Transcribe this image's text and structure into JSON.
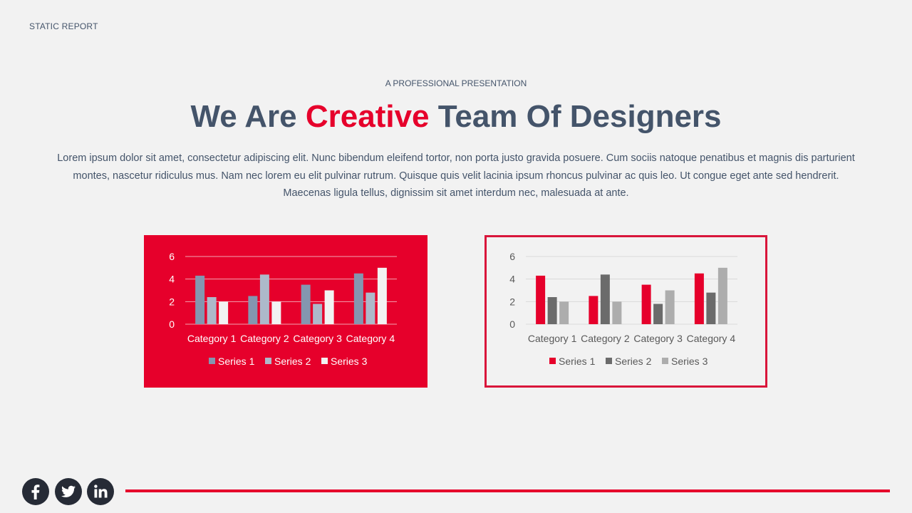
{
  "header": {
    "label": "STATIC REPORT"
  },
  "hero": {
    "kicker": "A PROFESSIONAL PRESENTATION",
    "title_part1": "We Are ",
    "title_accent": "Creative",
    "title_part2": " Team Of Designers",
    "body": "Lorem ipsum dolor sit amet, consectetur adipiscing elit. Nunc bibendum eleifend tortor, non porta justo gravida posuere. Cum sociis natoque penatibus et magnis dis parturient montes, nascetur ridiculus mus. Nam nec lorem eu elit pulvinar rutrum. Quisque quis velit lacinia ipsum rhoncus pulvinar ac quis leo. Ut congue eget ante sed hendrerit. Maecenas ligula tellus, dignissim sit amet interdum nec, malesuada at ante."
  },
  "colors": {
    "accent": "#e6002b",
    "text": "#44546a",
    "background": "#f2f2f2"
  },
  "social": [
    "facebook-icon",
    "twitter-icon",
    "linkedin-icon"
  ],
  "chart_data": [
    {
      "type": "bar",
      "categories": [
        "Category 1",
        "Category 2",
        "Category 3",
        "Category 4"
      ],
      "series": [
        {
          "name": "Series 1",
          "values": [
            4.3,
            2.5,
            3.5,
            4.5
          ],
          "color": "#8496b0"
        },
        {
          "name": "Series 2",
          "values": [
            2.4,
            4.4,
            1.8,
            2.8
          ],
          "color": "#adb9ca"
        },
        {
          "name": "Series 3",
          "values": [
            2.0,
            2.0,
            3.0,
            5.0
          ],
          "color": "#f2f2f2"
        }
      ],
      "yticks": [
        0,
        2,
        4,
        6
      ],
      "ylim": [
        0,
        6
      ],
      "grid": true,
      "legend": "bottom",
      "background": "#e6002b",
      "text_color": "#ffffff",
      "grid_color": "#f3a3b2"
    },
    {
      "type": "bar",
      "categories": [
        "Category 1",
        "Category 2",
        "Category 3",
        "Category 4"
      ],
      "series": [
        {
          "name": "Series 1",
          "values": [
            4.3,
            2.5,
            3.5,
            4.5
          ],
          "color": "#e6002b"
        },
        {
          "name": "Series 2",
          "values": [
            2.4,
            4.4,
            1.8,
            2.8
          ],
          "color": "#6b6b6b"
        },
        {
          "name": "Series 3",
          "values": [
            2.0,
            2.0,
            3.0,
            5.0
          ],
          "color": "#adadad"
        }
      ],
      "yticks": [
        0,
        2,
        4,
        6
      ],
      "ylim": [
        0,
        6
      ],
      "grid": true,
      "legend": "bottom",
      "background": "#f2f2f2",
      "text_color": "#595959",
      "grid_color": "#d9d9d9"
    }
  ]
}
